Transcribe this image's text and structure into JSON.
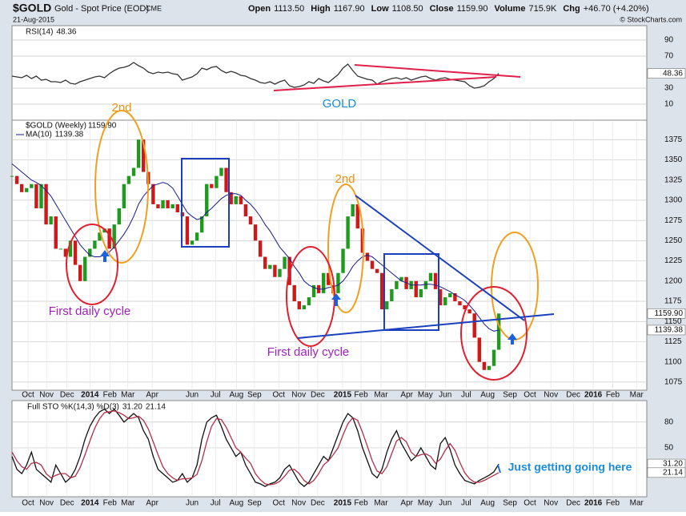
{
  "header": {
    "symbol": "$GOLD",
    "name": "Gold - Spot Price (EOD)",
    "exchange": "CME",
    "date": "21-Aug-2015",
    "credit": "© StockCharts.com",
    "quote": [
      {
        "label": "Open",
        "value": "1113.50"
      },
      {
        "label": "High",
        "value": "1167.90"
      },
      {
        "label": "Low",
        "value": "1108.50"
      },
      {
        "label": "Close",
        "value": "1159.90"
      },
      {
        "label": "Volume",
        "value": "715.9K"
      },
      {
        "label": "Chg",
        "value": "+46.70 (+4.20%)"
      }
    ]
  },
  "chart_data": [
    {
      "type": "line",
      "xlim": [
        0,
        130.4
      ],
      "ylim": [
        -10,
        108
      ],
      "yticks": [
        10,
        30,
        70,
        90
      ],
      "grid": true,
      "annotations": [
        "GOLD"
      ],
      "series": [
        {
          "name": "RSI(14)",
          "color": "#333333",
          "values": [
            45,
            44,
            43,
            46,
            42,
            45,
            40,
            41,
            38,
            38,
            37,
            40,
            36,
            35,
            38,
            40,
            42,
            44,
            45,
            43,
            48,
            52,
            55,
            56,
            58,
            62,
            58,
            55,
            50,
            48,
            50,
            49,
            50,
            48,
            47,
            40,
            42,
            44,
            48,
            55,
            53,
            56,
            57,
            52,
            49,
            51,
            49,
            46,
            45,
            42,
            40,
            37,
            36,
            38,
            35,
            38,
            40,
            33,
            31,
            32,
            34,
            38,
            36,
            42,
            39,
            37,
            42,
            47,
            55,
            60,
            52,
            45,
            43,
            41,
            40,
            35,
            38,
            40,
            42,
            43,
            41,
            43,
            40,
            42,
            44,
            45,
            42,
            40,
            42,
            43,
            41,
            40,
            39,
            38,
            33,
            30,
            31,
            33,
            38,
            42,
            48.36
          ]
        }
      ]
    },
    {
      "type": "candlestick",
      "xlim": [
        0,
        130.4
      ],
      "ylim": [
        1065,
        1399
      ],
      "yticks": [
        1075,
        1100,
        1125,
        1150,
        1175,
        1200,
        1225,
        1250,
        1275,
        1300,
        1325,
        1350,
        1375
      ],
      "grid": true,
      "up_color": "#1f9a1f",
      "down_color": "#d01818",
      "xticks": [
        {
          "value": 3.3,
          "label": "Oct"
        },
        {
          "value": 7.1,
          "label": "Nov"
        },
        {
          "value": 11.3,
          "label": "Dec"
        },
        {
          "value": 16,
          "label": "2014"
        },
        {
          "value": 20.1,
          "label": "Feb"
        },
        {
          "value": 23.8,
          "label": "Mar"
        },
        {
          "value": 28.8,
          "label": "Apr"
        },
        {
          "value": 37,
          "label": "Jun"
        },
        {
          "value": 41.8,
          "label": "Jul"
        },
        {
          "value": 46.1,
          "label": "Aug"
        },
        {
          "value": 49.8,
          "label": "Sep"
        },
        {
          "value": 54.8,
          "label": "Oct"
        },
        {
          "value": 58.9,
          "label": "Nov"
        },
        {
          "value": 62.8,
          "label": "Dec"
        },
        {
          "value": 67.9,
          "label": "2015"
        },
        {
          "value": 71.7,
          "label": "Feb"
        },
        {
          "value": 75.8,
          "label": "Mar"
        },
        {
          "value": 81.1,
          "label": "Apr"
        },
        {
          "value": 84.9,
          "label": "May"
        },
        {
          "value": 89,
          "label": "Jun"
        },
        {
          "value": 93.3,
          "label": "Jul"
        },
        {
          "value": 97.7,
          "label": "Aug"
        },
        {
          "value": 102.3,
          "label": "Sep"
        },
        {
          "value": 106.4,
          "label": "Oct"
        },
        {
          "value": 110.7,
          "label": "Nov"
        },
        {
          "value": 115.3,
          "label": "Dec"
        },
        {
          "value": 119.4,
          "label": "2016"
        },
        {
          "value": 123.4,
          "label": "Feb"
        },
        {
          "value": 128.3,
          "label": "Mar"
        }
      ],
      "annotations": [
        "2nd",
        "2nd",
        "First daily cycle",
        "First daily cycle"
      ],
      "series": [
        {
          "name": "$GOLD (Weekly)",
          "color": "#222222",
          "last_label": "1159.90",
          "values": [
            1330,
            1320,
            1310,
            1315,
            1320,
            1290,
            1320,
            1270,
            1280,
            1240,
            1240,
            1230,
            1250,
            1220,
            1200,
            1230,
            1240,
            1250,
            1260,
            1265,
            1240,
            1270,
            1290,
            1320,
            1330,
            1340,
            1375,
            1335,
            1320,
            1295,
            1290,
            1300,
            1290,
            1295,
            1285,
            1280,
            1245,
            1250,
            1260,
            1280,
            1320,
            1315,
            1330,
            1340,
            1310,
            1295,
            1305,
            1295,
            1280,
            1270,
            1250,
            1230,
            1215,
            1220,
            1205,
            1215,
            1230,
            1195,
            1175,
            1165,
            1170,
            1180,
            1195,
            1185,
            1210,
            1195,
            1185,
            1210,
            1240,
            1280,
            1295,
            1265,
            1235,
            1225,
            1215,
            1210,
            1165,
            1175,
            1190,
            1200,
            1205,
            1190,
            1200,
            1180,
            1190,
            1200,
            1210,
            1190,
            1170,
            1180,
            1185,
            1175,
            1170,
            1165,
            1160,
            1130,
            1100,
            1090,
            1095,
            1115,
            1159.9
          ]
        },
        {
          "name": "MA(10)",
          "color": "#1a1a8c",
          "values": [
            1345,
            1340,
            1335,
            1330,
            1325,
            1322,
            1318,
            1312,
            1305,
            1295,
            1285,
            1275,
            1265,
            1255,
            1245,
            1238,
            1232,
            1230,
            1230,
            1232,
            1236,
            1242,
            1250,
            1258,
            1268,
            1280,
            1295,
            1305,
            1312,
            1318,
            1320,
            1322,
            1320,
            1315,
            1305,
            1295,
            1285,
            1280,
            1276,
            1278,
            1285,
            1290,
            1296,
            1302,
            1306,
            1308,
            1308,
            1306,
            1300,
            1295,
            1288,
            1280,
            1270,
            1262,
            1252,
            1242,
            1235,
            1228,
            1218,
            1210,
            1200,
            1195,
            1192,
            1190,
            1190,
            1192,
            1193,
            1195,
            1200,
            1208,
            1218,
            1225,
            1230,
            1232,
            1230,
            1225,
            1220,
            1215,
            1210,
            1205,
            1200,
            1198,
            1195,
            1195,
            1195,
            1196,
            1196,
            1195,
            1193,
            1190,
            1187,
            1183,
            1180,
            1176,
            1170,
            1163,
            1155,
            1147,
            1141,
            1138,
            1139.38
          ]
        }
      ]
    },
    {
      "type": "line",
      "title": "Full STO %K(14,3) %D(3)",
      "xlim": [
        0,
        130.4
      ],
      "ylim": [
        -7,
        105
      ],
      "yticks": [
        50,
        80
      ],
      "grid": true,
      "xticks": [
        {
          "value": 3.3,
          "label": "Oct"
        },
        {
          "value": 7.1,
          "label": "Nov"
        },
        {
          "value": 11.3,
          "label": "Dec"
        },
        {
          "value": 16,
          "label": "2014"
        },
        {
          "value": 20.1,
          "label": "Feb"
        },
        {
          "value": 23.8,
          "label": "Mar"
        },
        {
          "value": 28.8,
          "label": "Apr"
        },
        {
          "value": 37,
          "label": "Jun"
        },
        {
          "value": 41.8,
          "label": "Jul"
        },
        {
          "value": 46.1,
          "label": "Aug"
        },
        {
          "value": 49.8,
          "label": "Sep"
        },
        {
          "value": 54.8,
          "label": "Oct"
        },
        {
          "value": 58.9,
          "label": "Nov"
        },
        {
          "value": 62.8,
          "label": "Dec"
        },
        {
          "value": 67.9,
          "label": "2015"
        },
        {
          "value": 71.7,
          "label": "Feb"
        },
        {
          "value": 75.8,
          "label": "Mar"
        },
        {
          "value": 81.1,
          "label": "Apr"
        },
        {
          "value": 84.9,
          "label": "May"
        },
        {
          "value": 89,
          "label": "Jun"
        },
        {
          "value": 93.3,
          "label": "Jul"
        },
        {
          "value": 97.7,
          "label": "Aug"
        },
        {
          "value": 102.3,
          "label": "Sep"
        },
        {
          "value": 106.4,
          "label": "Oct"
        },
        {
          "value": 110.7,
          "label": "Nov"
        },
        {
          "value": 115.3,
          "label": "Dec"
        },
        {
          "value": 119.4,
          "label": "2016"
        },
        {
          "value": 123.4,
          "label": "Feb"
        },
        {
          "value": 128.3,
          "label": "Mar"
        }
      ],
      "annotations": [
        "Just getting going here"
      ],
      "series": [
        {
          "color": "#111111",
          "last_label": "31.20",
          "values": [
            40,
            25,
            20,
            30,
            45,
            25,
            20,
            15,
            10,
            30,
            20,
            10,
            15,
            25,
            40,
            60,
            75,
            85,
            92,
            95,
            90,
            95,
            88,
            80,
            85,
            90,
            85,
            70,
            60,
            40,
            25,
            20,
            15,
            10,
            12,
            20,
            10,
            15,
            30,
            60,
            80,
            85,
            88,
            75,
            60,
            50,
            40,
            45,
            30,
            20,
            10,
            8,
            5,
            8,
            10,
            15,
            25,
            30,
            20,
            10,
            5,
            10,
            20,
            30,
            40,
            35,
            50,
            65,
            80,
            90,
            85,
            70,
            50,
            35,
            20,
            15,
            25,
            45,
            60,
            70,
            55,
            45,
            35,
            40,
            50,
            40,
            30,
            25,
            55,
            62,
            48,
            30,
            20,
            12,
            10,
            8,
            12,
            15,
            18,
            22,
            31.2
          ]
        },
        {
          "color": "#b0304a",
          "last_label": "21.14",
          "values": [
            45,
            35,
            28,
            25,
            32,
            33,
            30,
            20,
            15,
            18,
            20,
            20,
            15,
            17,
            27,
            42,
            58,
            73,
            84,
            91,
            92,
            93,
            91,
            88,
            84,
            85,
            87,
            82,
            72,
            57,
            42,
            28,
            20,
            15,
            12,
            14,
            14,
            15,
            19,
            35,
            57,
            75,
            84,
            83,
            74,
            62,
            50,
            45,
            38,
            32,
            20,
            13,
            8,
            7,
            8,
            11,
            17,
            24,
            25,
            20,
            12,
            8,
            12,
            20,
            30,
            35,
            42,
            50,
            65,
            78,
            85,
            82,
            68,
            52,
            35,
            23,
            20,
            28,
            43,
            58,
            62,
            57,
            45,
            40,
            42,
            43,
            40,
            32,
            37,
            47,
            55,
            47,
            33,
            21,
            14,
            10,
            10,
            12,
            15,
            18,
            21.14
          ]
        }
      ]
    }
  ]
}
